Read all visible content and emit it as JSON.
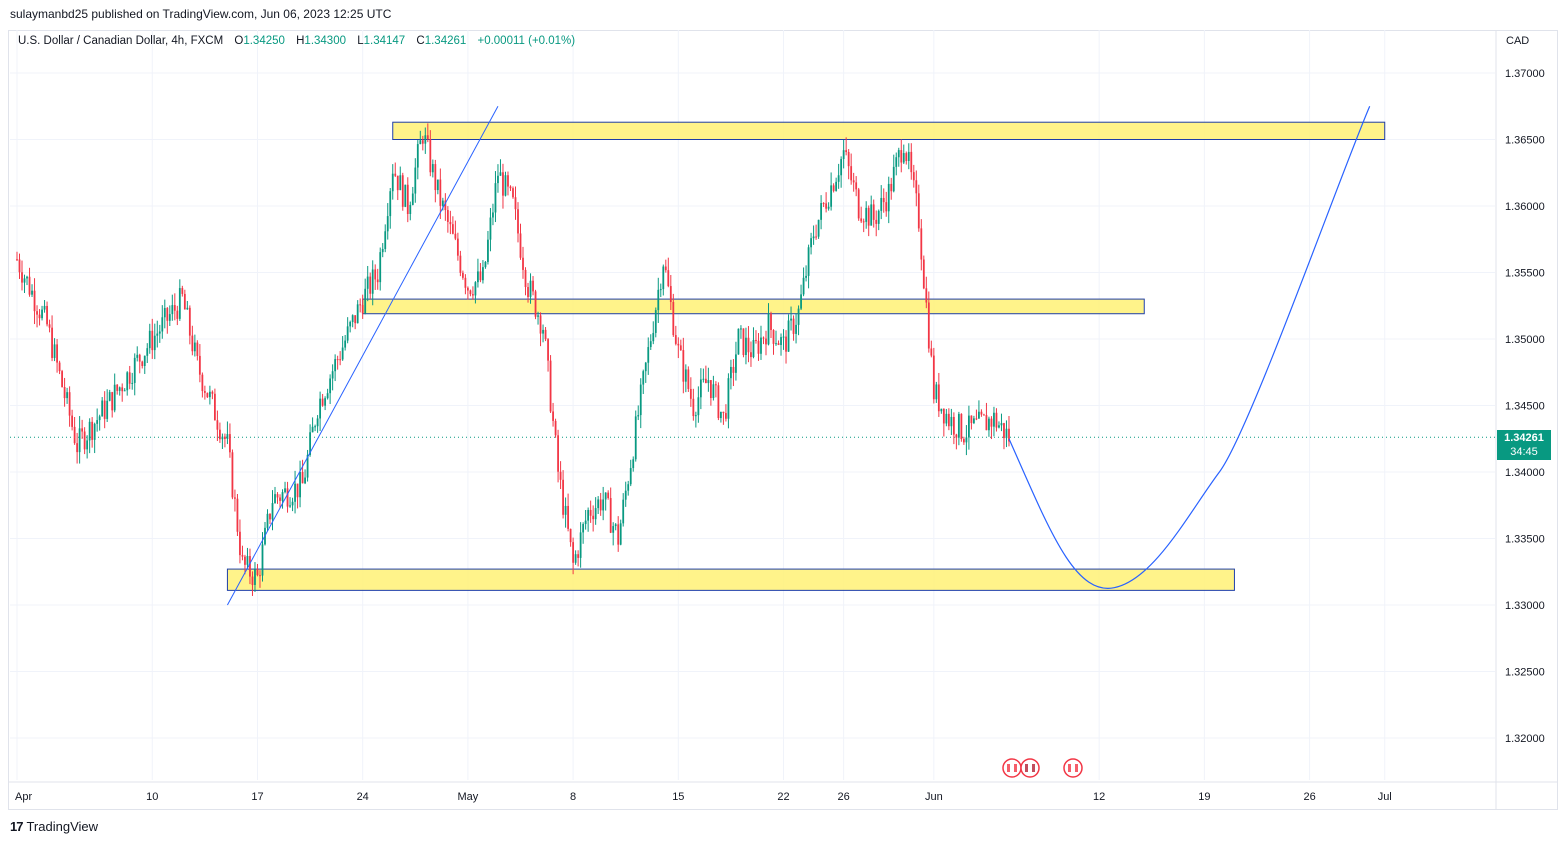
{
  "publisher": "sulaymanbd25 published on TradingView.com, Jun 06, 2023 12:25 UTC",
  "legend": {
    "symbol": "U.S. Dollar / Canadian Dollar, 4h, FXCM",
    "open_label": "O",
    "open": "1.34250",
    "high_label": "H",
    "high": "1.34300",
    "low_label": "L",
    "low": "1.34147",
    "close_label": "C",
    "close": "1.34261",
    "change": "+0.00011 (+0.01%)"
  },
  "currency": "CAD",
  "last_price": {
    "price": "1.34261",
    "countdown": "34:45"
  },
  "footer": {
    "brand": "TradingView"
  },
  "colors": {
    "up": "#089981",
    "down": "#f23645",
    "zone_fill": "#fff176",
    "zone_border": "#1e3ea8",
    "line": "#2962ff",
    "grid": "#f0f3fa"
  },
  "chart_data": {
    "type": "candlestick",
    "title": "U.S. Dollar / Canadian Dollar, 4h, FXCM",
    "ylim": [
      1.3165,
      1.3725
    ],
    "y_ticks": [
      "1.37000",
      "1.36500",
      "1.36000",
      "1.35500",
      "1.35000",
      "1.34500",
      "1.34000",
      "1.33500",
      "1.33000",
      "1.32500",
      "1.32000"
    ],
    "x_ticks": [
      "Apr",
      "10",
      "17",
      "24",
      "May",
      "8",
      "15",
      "22",
      "26",
      "Jun",
      "12",
      "19",
      "26",
      "Jul"
    ],
    "last_close": 1.34261,
    "series_close_keypoints": [
      {
        "date": "Apr 1",
        "close": 1.356
      },
      {
        "date": "Apr 3",
        "close": 1.351
      },
      {
        "date": "Apr 5",
        "close": 1.342
      },
      {
        "date": "Apr 7",
        "close": 1.345
      },
      {
        "date": "Apr 10",
        "close": 1.35
      },
      {
        "date": "Apr 12",
        "close": 1.353
      },
      {
        "date": "Apr 13",
        "close": 1.348
      },
      {
        "date": "Apr 15",
        "close": 1.342
      },
      {
        "date": "Apr 16",
        "close": 1.333
      },
      {
        "date": "Apr 17",
        "close": 1.332
      },
      {
        "date": "Apr 18",
        "close": 1.338
      },
      {
        "date": "Apr 20",
        "close": 1.339
      },
      {
        "date": "Apr 21",
        "close": 1.345
      },
      {
        "date": "Apr 24",
        "close": 1.353
      },
      {
        "date": "Apr 25",
        "close": 1.355
      },
      {
        "date": "Apr 26",
        "close": 1.363
      },
      {
        "date": "Apr 27",
        "close": 1.36
      },
      {
        "date": "Apr 28",
        "close": 1.3655
      },
      {
        "date": "Apr 29",
        "close": 1.361
      },
      {
        "date": "May 1",
        "close": 1.354
      },
      {
        "date": "May 2",
        "close": 1.3545
      },
      {
        "date": "May 3",
        "close": 1.3625
      },
      {
        "date": "May 4",
        "close": 1.36
      },
      {
        "date": "May 5",
        "close": 1.354
      },
      {
        "date": "May 6",
        "close": 1.351
      },
      {
        "date": "May 7",
        "close": 1.34
      },
      {
        "date": "May 8",
        "close": 1.333
      },
      {
        "date": "May 9",
        "close": 1.337
      },
      {
        "date": "May 10",
        "close": 1.338
      },
      {
        "date": "May 11",
        "close": 1.335
      },
      {
        "date": "May 12",
        "close": 1.342
      },
      {
        "date": "May 13",
        "close": 1.349
      },
      {
        "date": "May 14",
        "close": 1.356
      },
      {
        "date": "May 15",
        "close": 1.349
      },
      {
        "date": "May 16",
        "close": 1.345
      },
      {
        "date": "May 17",
        "close": 1.347
      },
      {
        "date": "May 18",
        "close": 1.344
      },
      {
        "date": "May 19",
        "close": 1.35
      },
      {
        "date": "May 20",
        "close": 1.349
      },
      {
        "date": "May 21",
        "close": 1.351
      },
      {
        "date": "May 22",
        "close": 1.3495
      },
      {
        "date": "May 23",
        "close": 1.352
      },
      {
        "date": "May 24",
        "close": 1.358
      },
      {
        "date": "May 25",
        "close": 1.361
      },
      {
        "date": "May 26",
        "close": 1.364
      },
      {
        "date": "May 27",
        "close": 1.36
      },
      {
        "date": "May 28",
        "close": 1.359
      },
      {
        "date": "May 29",
        "close": 1.361
      },
      {
        "date": "May 30",
        "close": 1.365
      },
      {
        "date": "May 31",
        "close": 1.359
      },
      {
        "date": "Jun 1",
        "close": 1.346
      },
      {
        "date": "Jun 2",
        "close": 1.344
      },
      {
        "date": "Jun 3",
        "close": 1.343
      },
      {
        "date": "Jun 5",
        "close": 1.344
      },
      {
        "date": "Jun 6",
        "close": 1.34261
      }
    ],
    "zones": [
      {
        "from": "Apr 26",
        "to": "Jul 1",
        "low": 1.365,
        "high": 1.3663
      },
      {
        "from": "Apr 24",
        "to": "Jun 15",
        "low": 1.3519,
        "high": 1.353
      },
      {
        "from": "Apr 15",
        "to": "Jun 21",
        "low": 1.3311,
        "high": 1.3327
      }
    ],
    "trendline": [
      {
        "date": "Apr 15",
        "price": 1.33
      },
      {
        "date": "May 3",
        "price": 1.3675
      }
    ],
    "projection": [
      {
        "date": "Jun 6",
        "price": 1.3425
      },
      {
        "date": "Jun 13",
        "price": 1.3313
      },
      {
        "date": "Jun 20",
        "price": 1.34
      },
      {
        "date": "Jun 30",
        "price": 1.3675
      }
    ]
  }
}
